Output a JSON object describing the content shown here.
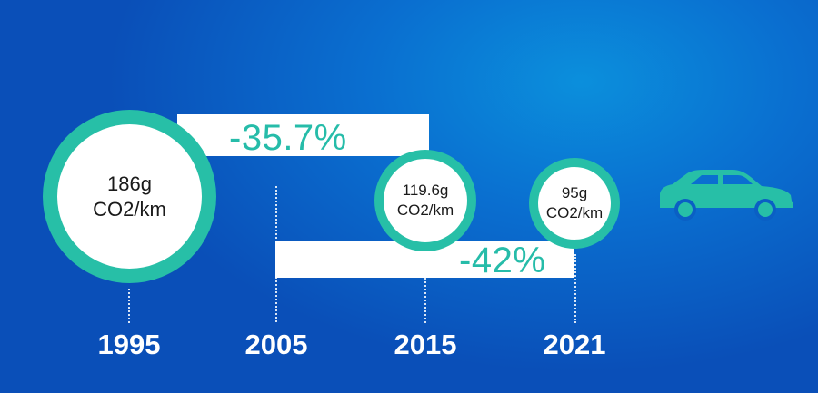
{
  "chart_data": {
    "type": "timeline",
    "x_unit": "year",
    "y_unit": "g CO2/km",
    "years": [
      "1995",
      "2005",
      "2015",
      "2021"
    ],
    "points": [
      {
        "year": 1995,
        "value": 186,
        "label_line1": "186g",
        "label_line2": "CO2/km"
      },
      {
        "year": 2015,
        "value": 119.6,
        "label_line1": "119.6g",
        "label_line2": "CO2/km"
      },
      {
        "year": 2021,
        "value": 95,
        "label_line1": "95g",
        "label_line2": "CO2/km"
      }
    ],
    "annotations": [
      {
        "from_year": 1995,
        "to_year": 2015,
        "text": "-35.7%"
      },
      {
        "from_year": 2005,
        "to_year": 2021,
        "text": "-42%"
      }
    ]
  },
  "colors": {
    "accent": "#27bfa7",
    "background_top": "#0b8fdc",
    "background_bottom": "#0a4fb8",
    "text_dark": "#1a1a1a",
    "white": "#ffffff"
  },
  "icons": {
    "car": "car-icon"
  }
}
